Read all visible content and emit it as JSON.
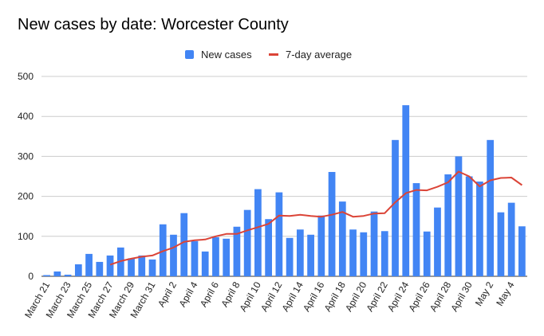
{
  "title": "New cases by date: Worcester County",
  "legend": {
    "bar_label": "New cases",
    "line_label": "7-day average"
  },
  "colors": {
    "bar": "#4285f4",
    "line": "#db4437",
    "grid": "#cccccc",
    "text": "#222222"
  },
  "chart_data": {
    "type": "bar",
    "title": "New cases by date: Worcester County",
    "xlabel": "",
    "ylabel": "",
    "ylim": [
      0,
      500
    ],
    "yticks": [
      0,
      100,
      200,
      300,
      400,
      500
    ],
    "grid": true,
    "legend_position": "top",
    "categories": [
      "March 21",
      "March 22",
      "March 23",
      "March 24",
      "March 25",
      "March 26",
      "March 27",
      "March 28",
      "March 29",
      "March 30",
      "March 31",
      "April 1",
      "April 2",
      "April 3",
      "April 4",
      "April 5",
      "April 6",
      "April 7",
      "April 8",
      "April 9",
      "April 10",
      "April 11",
      "April 12",
      "April 13",
      "April 14",
      "April 15",
      "April 16",
      "April 17",
      "April 18",
      "April 19",
      "April 20",
      "April 21",
      "April 22",
      "April 23",
      "April 24",
      "April 25",
      "April 26",
      "April 27",
      "April 28",
      "April 29",
      "April 30",
      "May 1",
      "May 2",
      "May 3",
      "May 4",
      "May 5"
    ],
    "tick_labels": [
      "March 21",
      "",
      "March 23",
      "",
      "March 25",
      "",
      "March 27",
      "",
      "March 29",
      "",
      "March 31",
      "",
      "April 2",
      "",
      "April 4",
      "",
      "April 6",
      "",
      "April 8",
      "",
      "April 10",
      "",
      "April 12",
      "",
      "April 14",
      "",
      "April 16",
      "",
      "April 18",
      "",
      "April 20",
      "",
      "April 22",
      "",
      "April 24",
      "",
      "April 26",
      "",
      "April 28",
      "",
      "April 30",
      "",
      "May 2",
      "",
      "May 4",
      ""
    ],
    "series": [
      {
        "name": "New cases",
        "type": "bar",
        "values": [
          3,
          12,
          4,
          30,
          56,
          36,
          52,
          72,
          45,
          52,
          42,
          130,
          104,
          158,
          88,
          62,
          98,
          94,
          124,
          166,
          218,
          143,
          210,
          96,
          117,
          104,
          152,
          261,
          187,
          117,
          110,
          162,
          113,
          341,
          428,
          233,
          112,
          172,
          255,
          300,
          250,
          237,
          341,
          160,
          184,
          125
        ]
      },
      {
        "name": "7-day average",
        "type": "line",
        "values": [
          null,
          null,
          null,
          null,
          null,
          null,
          29,
          38,
          44,
          49,
          52,
          63,
          72,
          86,
          90,
          92,
          100,
          106,
          106,
          115,
          123,
          131,
          152,
          151,
          154,
          151,
          149,
          154,
          161,
          149,
          151,
          157,
          158,
          185,
          208,
          216,
          215,
          224,
          235,
          262,
          250,
          225,
          240,
          246,
          247,
          228
        ]
      }
    ]
  }
}
